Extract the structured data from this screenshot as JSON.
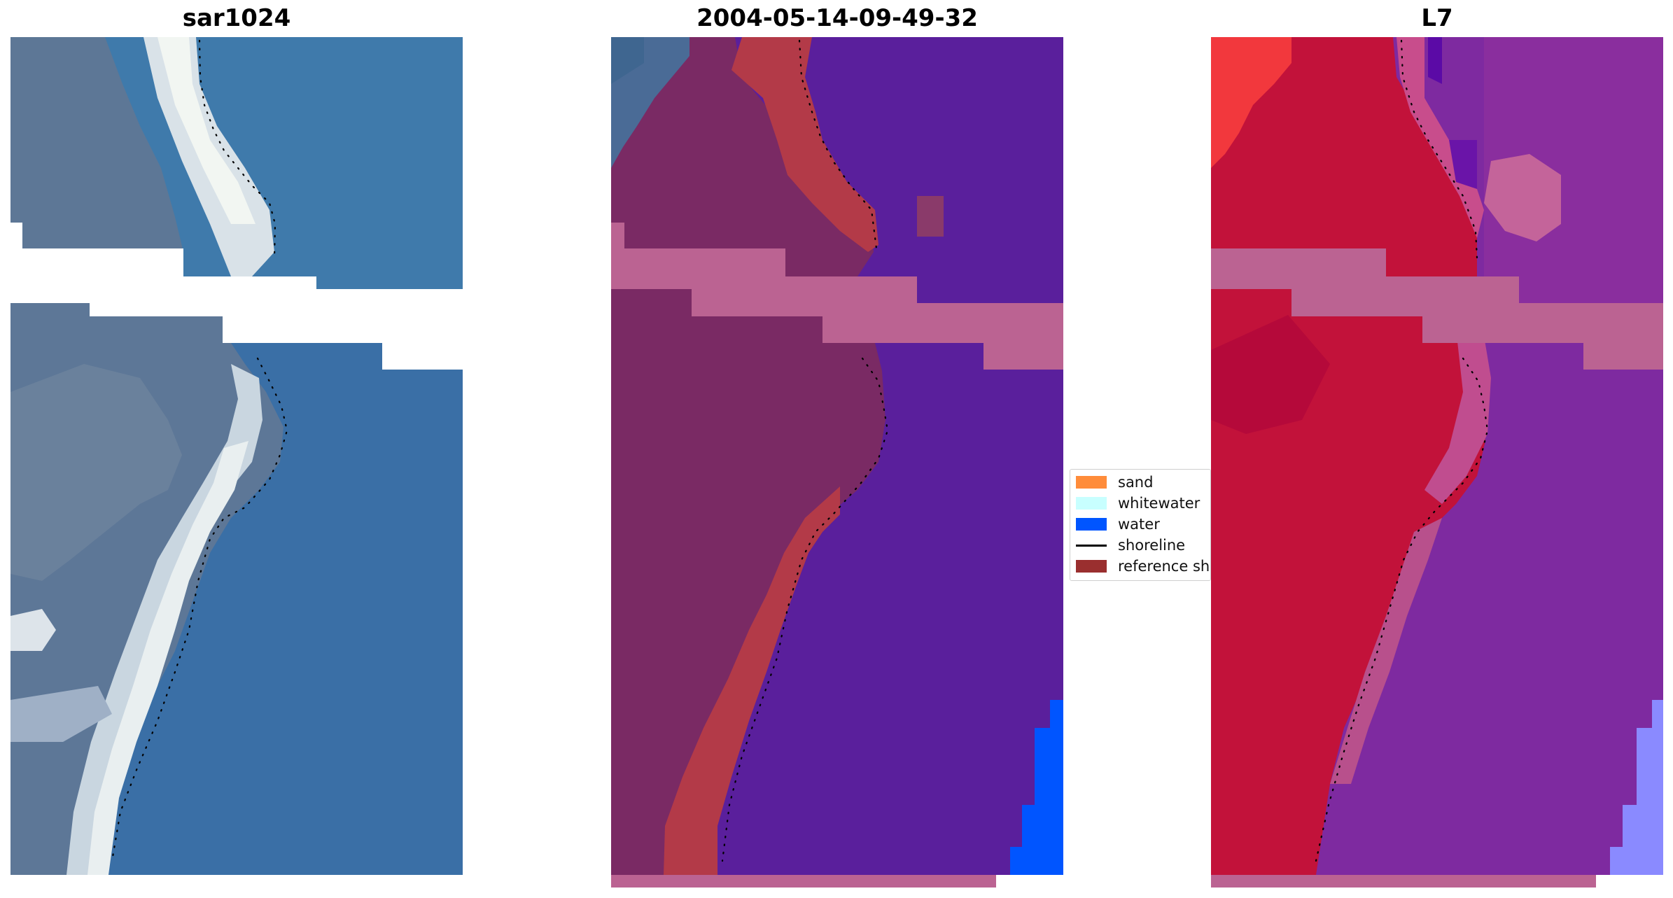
{
  "panels": [
    {
      "title": "sar1024"
    },
    {
      "title": "2004-05-14-09-49-32"
    },
    {
      "title": "L7"
    }
  ],
  "legend": {
    "items": [
      {
        "label": "sand",
        "color": "#ff8c3a",
        "kind": "patch"
      },
      {
        "label": "whitewater",
        "color": "#c8ffff",
        "kind": "patch"
      },
      {
        "label": "water",
        "color": "#0055ff",
        "kind": "patch"
      },
      {
        "label": "shoreline",
        "color": "#000000",
        "kind": "line"
      },
      {
        "label": "reference shoreline",
        "color": "#9a2f2f",
        "kind": "patch"
      }
    ]
  },
  "colors": {
    "rgb_water": "#3f7aab",
    "rgb_land": "#5d7796",
    "rgb_beach": "#e8eef0",
    "class_water": "#5a1f9c",
    "class_land": "#7a2a64",
    "class_band": "#bb6392",
    "class_reference": "#b33a48",
    "class_water_blue": "#0055ff",
    "l7_land": "#c2123a",
    "l7_water": "#7e2aa0",
    "l7_band": "#bb6392",
    "l7_blue": "#8a8aff"
  }
}
